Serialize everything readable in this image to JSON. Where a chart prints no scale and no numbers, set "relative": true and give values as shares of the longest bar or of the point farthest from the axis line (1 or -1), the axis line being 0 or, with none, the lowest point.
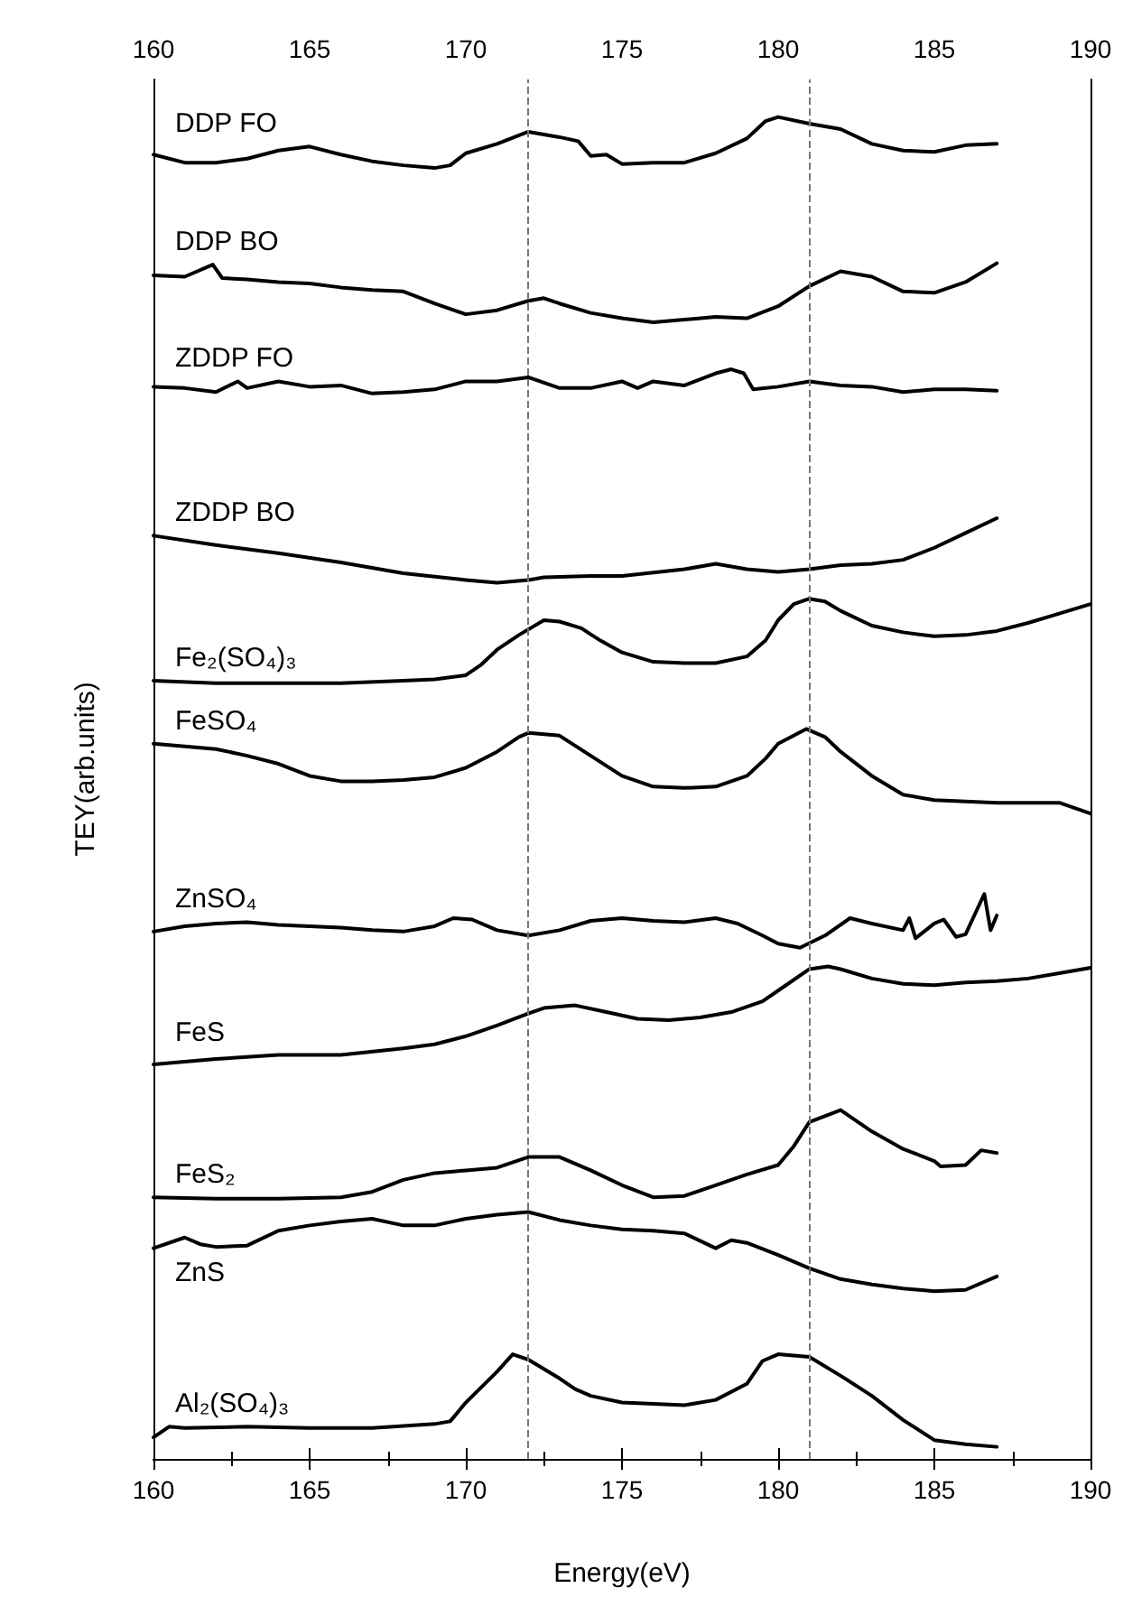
{
  "chart_data": {
    "type": "line",
    "xlabel": "Energy(eV)",
    "ylabel": "TEY(arb.units)",
    "relative": true,
    "xlim": [
      160,
      190
    ],
    "xticks": [
      160,
      165,
      170,
      175,
      180,
      185,
      190
    ],
    "x2lim": [
      160,
      190
    ],
    "x2ticks": [
      160,
      165,
      170,
      175,
      180,
      185,
      190
    ],
    "tick_labels": "x",
    "grid": false,
    "legend": false,
    "marker": "none",
    "line_style": "solid",
    "ref_lines": [
      {
        "axis": "x",
        "value": 172,
        "color": "#777777",
        "line_style": "dashed"
      },
      {
        "axis": "x",
        "value": 181,
        "color": "#777777",
        "line_style": "dashed"
      }
    ],
    "series": [
      {
        "name": "DDP FO",
        "color": "#000000",
        "x": [
          160,
          161,
          162,
          163,
          164,
          165,
          166,
          167,
          168,
          169,
          169.5,
          170,
          171,
          172,
          173,
          173.6,
          174,
          174.5,
          175,
          176,
          177,
          178,
          179,
          179.6,
          180,
          181,
          182,
          183,
          184,
          185,
          186,
          187
        ],
        "values": [
          0.972,
          0.966,
          0.966,
          0.969,
          0.975,
          0.978,
          0.972,
          0.967,
          0.964,
          0.962,
          0.964,
          0.973,
          0.98,
          0.989,
          0.985,
          0.982,
          0.971,
          0.972,
          0.965,
          0.966,
          0.966,
          0.973,
          0.984,
          0.997,
          1,
          0.995,
          0.991,
          0.98,
          0.975,
          0.974,
          0.979,
          0.98
        ]
      },
      {
        "name": "DDP BO",
        "color": "#000000",
        "x": [
          160,
          161,
          161.9,
          162.2,
          163,
          164,
          165,
          166,
          167,
          168,
          169,
          170,
          171,
          172,
          172.5,
          173,
          174,
          175,
          176,
          177,
          178,
          179,
          180,
          181,
          182,
          183,
          184,
          185,
          186,
          187
        ],
        "values": [
          0.882,
          0.881,
          0.89,
          0.88,
          0.879,
          0.877,
          0.876,
          0.873,
          0.871,
          0.87,
          0.861,
          0.853,
          0.856,
          0.863,
          0.865,
          0.861,
          0.854,
          0.85,
          0.847,
          0.849,
          0.851,
          0.85,
          0.859,
          0.874,
          0.885,
          0.881,
          0.87,
          0.869,
          0.877,
          0.891
        ]
      },
      {
        "name": "ZDDP FO",
        "color": "#000000",
        "x": [
          160,
          161,
          162,
          162.7,
          163,
          164,
          165,
          166,
          167,
          168,
          169,
          170,
          171,
          172,
          173,
          174,
          175,
          175.5,
          176,
          177,
          178,
          178.5,
          178.9,
          179.2,
          180,
          181,
          182,
          183,
          184,
          185,
          186,
          187
        ],
        "values": [
          0.799,
          0.798,
          0.795,
          0.803,
          0.798,
          0.803,
          0.799,
          0.8,
          0.794,
          0.795,
          0.797,
          0.803,
          0.803,
          0.806,
          0.798,
          0.798,
          0.803,
          0.798,
          0.803,
          0.8,
          0.809,
          0.812,
          0.809,
          0.797,
          0.799,
          0.803,
          0.8,
          0.799,
          0.795,
          0.797,
          0.797,
          0.796
        ]
      },
      {
        "name": "ZDDP BO",
        "color": "#000000",
        "x": [
          160,
          162,
          164,
          166,
          168,
          170,
          171,
          172,
          172.5,
          174,
          175,
          177,
          178,
          179,
          180,
          181,
          182,
          183,
          184,
          185,
          186,
          187
        ],
        "values": [
          0.688,
          0.681,
          0.675,
          0.668,
          0.66,
          0.655,
          0.653,
          0.655,
          0.657,
          0.658,
          0.658,
          0.663,
          0.667,
          0.663,
          0.661,
          0.663,
          0.666,
          0.667,
          0.67,
          0.679,
          0.69,
          0.701
        ]
      },
      {
        "name": "Fe₂(SO₄)₃",
        "color": "#000000",
        "x": [
          160,
          162,
          164,
          166,
          168,
          169,
          170,
          170.5,
          171,
          171.7,
          172.5,
          173,
          173.7,
          174.3,
          175,
          176,
          177,
          178,
          179,
          179.6,
          180,
          180.5,
          181,
          181.5,
          182,
          183,
          184,
          185,
          186,
          187,
          188,
          189,
          190
        ],
        "values": [
          0.58,
          0.578,
          0.578,
          0.578,
          0.58,
          0.581,
          0.584,
          0.592,
          0.603,
          0.614,
          0.625,
          0.624,
          0.619,
          0.61,
          0.601,
          0.594,
          0.593,
          0.593,
          0.598,
          0.61,
          0.625,
          0.637,
          0.641,
          0.639,
          0.632,
          0.621,
          0.616,
          0.613,
          0.614,
          0.617,
          0.623,
          0.63,
          0.637
        ]
      },
      {
        "name": "FeSO₄",
        "color": "#000000",
        "x": [
          160,
          162,
          163,
          164,
          165,
          166,
          167,
          168,
          169,
          170,
          171,
          171.7,
          172,
          173,
          174,
          175,
          176,
          177,
          178,
          179,
          179.6,
          180,
          180.9,
          181.5,
          182,
          183,
          184,
          185,
          186,
          187,
          188,
          189,
          190
        ],
        "values": [
          0.533,
          0.529,
          0.524,
          0.518,
          0.509,
          0.505,
          0.505,
          0.506,
          0.508,
          0.515,
          0.527,
          0.538,
          0.541,
          0.539,
          0.524,
          0.509,
          0.501,
          0.5,
          0.501,
          0.509,
          0.522,
          0.533,
          0.544,
          0.538,
          0.527,
          0.509,
          0.495,
          0.491,
          0.49,
          0.489,
          0.489,
          0.489,
          0.481
        ]
      },
      {
        "name": "ZnSO₄",
        "color": "#000000",
        "x": [
          160,
          161,
          162,
          163,
          164,
          165,
          166,
          167,
          168,
          169,
          169.6,
          170.2,
          171,
          172,
          173,
          174,
          175,
          176,
          177,
          178,
          178.7,
          179.5,
          180,
          180.7,
          181.5,
          182.3,
          183,
          184,
          184.2,
          184.4,
          185,
          185.3,
          185.7,
          186,
          186.6,
          186.8,
          187
        ],
        "values": [
          0.393,
          0.397,
          0.399,
          0.4,
          0.398,
          0.397,
          0.396,
          0.394,
          0.393,
          0.397,
          0.403,
          0.402,
          0.394,
          0.39,
          0.394,
          0.401,
          0.403,
          0.401,
          0.4,
          0.403,
          0.399,
          0.39,
          0.384,
          0.381,
          0.39,
          0.403,
          0.399,
          0.394,
          0.403,
          0.388,
          0.399,
          0.402,
          0.389,
          0.391,
          0.421,
          0.394,
          0.405
        ]
      },
      {
        "name": "FeS",
        "color": "#000000",
        "x": [
          160,
          162,
          164,
          166,
          168,
          169,
          170,
          171,
          172,
          172.5,
          173.5,
          174.5,
          175.5,
          176.5,
          177.5,
          178.5,
          179.5,
          180,
          181,
          181.6,
          182,
          183,
          184,
          185,
          186,
          187,
          188,
          189,
          190
        ],
        "values": [
          0.294,
          0.298,
          0.301,
          0.301,
          0.306,
          0.309,
          0.315,
          0.323,
          0.332,
          0.336,
          0.338,
          0.333,
          0.328,
          0.327,
          0.329,
          0.333,
          0.341,
          0.349,
          0.365,
          0.367,
          0.365,
          0.358,
          0.354,
          0.353,
          0.355,
          0.356,
          0.358,
          0.362,
          0.366
        ]
      },
      {
        "name": "FeS₂",
        "color": "#000000",
        "x": [
          160,
          162,
          164,
          166,
          167,
          168,
          169,
          170,
          171,
          172,
          173,
          174,
          175,
          176,
          177,
          178,
          179,
          180,
          180.5,
          181,
          182,
          183,
          184,
          185,
          185.2,
          186,
          186.5,
          187
        ],
        "values": [
          0.195,
          0.194,
          0.194,
          0.195,
          0.199,
          0.208,
          0.213,
          0.215,
          0.217,
          0.225,
          0.225,
          0.215,
          0.204,
          0.195,
          0.196,
          0.204,
          0.212,
          0.219,
          0.233,
          0.251,
          0.26,
          0.244,
          0.231,
          0.222,
          0.218,
          0.219,
          0.23,
          0.228
        ]
      },
      {
        "name": "ZnS",
        "color": "#000000",
        "x": [
          160,
          161,
          161.5,
          162,
          163,
          164,
          165,
          166,
          167,
          168,
          169,
          170,
          171,
          172,
          173,
          174,
          175,
          176,
          177,
          178,
          178.5,
          179,
          180,
          181,
          182,
          183,
          184,
          185,
          186,
          187
        ],
        "values": [
          0.157,
          0.165,
          0.16,
          0.158,
          0.159,
          0.17,
          0.174,
          0.177,
          0.179,
          0.174,
          0.174,
          0.179,
          0.182,
          0.184,
          0.178,
          0.174,
          0.171,
          0.17,
          0.168,
          0.157,
          0.163,
          0.161,
          0.152,
          0.142,
          0.134,
          0.13,
          0.127,
          0.125,
          0.126,
          0.136
        ]
      },
      {
        "name": "Al₂(SO₄)₃",
        "color": "#000000",
        "x": [
          160,
          160.5,
          161,
          163,
          165,
          167,
          169,
          169.5,
          170,
          171,
          171.5,
          172,
          173,
          173.5,
          174,
          175,
          176,
          177,
          178,
          179,
          179.5,
          180,
          181,
          182,
          183,
          184,
          185,
          186,
          187
        ],
        "values": [
          0.016,
          0.024,
          0.023,
          0.024,
          0.023,
          0.023,
          0.026,
          0.028,
          0.042,
          0.065,
          0.078,
          0.074,
          0.06,
          0.052,
          0.047,
          0.042,
          0.041,
          0.04,
          0.044,
          0.056,
          0.073,
          0.078,
          0.076,
          0.062,
          0.047,
          0.029,
          0.014,
          0.011,
          0.009
        ]
      }
    ]
  }
}
